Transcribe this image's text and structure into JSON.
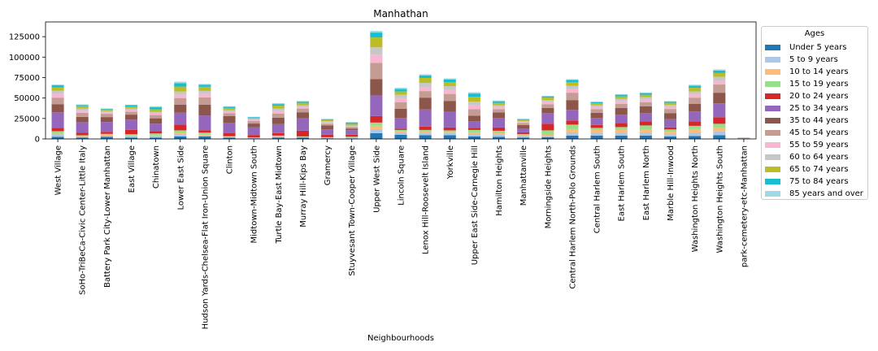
{
  "chart_data": {
    "type": "bar",
    "stacked": true,
    "title": "Manhathan",
    "xlabel": "Neighbourhoods",
    "ylabel": "",
    "ylim": [
      0,
      143000
    ],
    "yticks": [
      0,
      25000,
      50000,
      75000,
      100000,
      125000
    ],
    "ytick_labels": [
      "0",
      "25000",
      "50000",
      "75000",
      "100000",
      "125000"
    ],
    "grid": false,
    "legend": {
      "title": "Ages",
      "placement": "outside-right"
    },
    "categories": [
      "West Village",
      "SoHo-TriBeCa-Civic Center-Little Italy",
      "Battery Park City-Lower Manhattan",
      "East Village",
      "Chinatown",
      "Lower East Side",
      "Hudson Yards-Chelsea-Flat Iron-Union Square",
      "Clinton",
      "Midtown-Midtown South",
      "Turtle Bay-East Midtown",
      "Murray Hill-Kips Bay",
      "Gramercy",
      "Stuyvesant Town-Cooper Village",
      "Upper West Side",
      "Lincoln Square",
      "Lenox Hill-Roosevelt Island",
      "Yorkville",
      "Upper East Side-Carnegie Hill",
      "Hamilton Heights",
      "Manhattanville",
      "Morningside Heights",
      "Central Harlem North-Polo Grounds",
      "Central Harlem South",
      "East Harlem South",
      "East Harlem North",
      "Marble Hill-Inwood",
      "Washington Heights North",
      "Washington Heights South",
      "park-cemetery-etc-Manhattan"
    ],
    "series": [
      {
        "name": "Under 5 years",
        "color": "#1f77b4",
        "values": [
          2500,
          1500,
          2500,
          1500,
          1500,
          3000,
          3000,
          1500,
          700,
          1800,
          1800,
          800,
          500,
          7000,
          5000,
          4500,
          4500,
          3000,
          2500,
          1500,
          2000,
          4000,
          4000,
          4000,
          4000,
          3000,
          3500,
          4500,
          100
        ]
      },
      {
        "name": "5 to 9 years",
        "color": "#aec7e8",
        "values": [
          2500,
          1000,
          1500,
          1500,
          1500,
          2500,
          1200,
          800,
          400,
          800,
          500,
          500,
          500,
          5000,
          3000,
          3000,
          2500,
          3000,
          2500,
          1500,
          1500,
          4000,
          3500,
          3500,
          4000,
          2800,
          4500,
          4500,
          100
        ]
      },
      {
        "name": "10 to 14 years",
        "color": "#ffbb78",
        "values": [
          1500,
          1000,
          1200,
          1200,
          1200,
          2000,
          1000,
          500,
          300,
          500,
          300,
          400,
          700,
          4000,
          1500,
          1500,
          1500,
          2000,
          2000,
          1500,
          1500,
          4000,
          3500,
          3500,
          3500,
          2800,
          4000,
          4500,
          100
        ]
      },
      {
        "name": "15 to 19 years",
        "color": "#98df8a",
        "values": [
          3000,
          1000,
          1000,
          1500,
          2500,
          3000,
          2500,
          500,
          400,
          1000,
          500,
          400,
          1000,
          4000,
          1500,
          2000,
          2000,
          3000,
          3000,
          1500,
          5500,
          5500,
          2500,
          3500,
          5000,
          3000,
          4000,
          5000,
          200
        ]
      },
      {
        "name": "20 to 24 years",
        "color": "#d62728",
        "values": [
          4000,
          3000,
          2500,
          5500,
          3000,
          7000,
          3000,
          4000,
          3000,
          3000,
          7000,
          3000,
          2500,
          8000,
          1500,
          4000,
          3500,
          2500,
          4000,
          2000,
          8000,
          5000,
          3500,
          5000,
          5000,
          2500,
          5500,
          8000,
          100
        ]
      },
      {
        "name": "25 to 34 years",
        "color": "#9467bd",
        "values": [
          19000,
          13000,
          12000,
          12500,
          9000,
          14500,
          18000,
          12500,
          9500,
          11000,
          15000,
          6500,
          5500,
          25000,
          13000,
          21000,
          19000,
          8000,
          11500,
          4500,
          13000,
          13000,
          8500,
          10000,
          10000,
          10000,
          12000,
          17000,
          300
        ]
      },
      {
        "name": "35 to 44 years",
        "color": "#8c564b",
        "values": [
          10000,
          6500,
          6000,
          6000,
          6500,
          10000,
          13000,
          8000,
          4500,
          8000,
          7500,
          5000,
          2000,
          20000,
          11500,
          14500,
          13500,
          7000,
          7000,
          4500,
          6500,
          12000,
          6500,
          8500,
          8500,
          7500,
          9500,
          13000,
          200
        ]
      },
      {
        "name": "45 to 54 years",
        "color": "#c49c94",
        "values": [
          8000,
          5000,
          4000,
          3500,
          4000,
          8000,
          9000,
          3500,
          3000,
          5000,
          4500,
          2000,
          2000,
          20000,
          8000,
          8000,
          8500,
          8000,
          4000,
          2500,
          4500,
          9000,
          4500,
          5000,
          5000,
          5000,
          7500,
          10000,
          200
        ]
      },
      {
        "name": "55 to 59 years",
        "color": "#f7b6d2",
        "values": [
          4500,
          2500,
          1800,
          2000,
          2000,
          4000,
          4500,
          2000,
          1500,
          3000,
          2000,
          1500,
          800,
          10000,
          5000,
          5000,
          5000,
          4500,
          2500,
          1200,
          2500,
          4500,
          2500,
          3000,
          3000,
          2500,
          4000,
          5000,
          100
        ]
      },
      {
        "name": "60 to 64 years",
        "color": "#c7c7c7",
        "values": [
          4000,
          2500,
          1500,
          2000,
          2000,
          4000,
          3500,
          2000,
          1500,
          3000,
          2000,
          1500,
          1000,
          9000,
          4000,
          5000,
          4500,
          4500,
          2000,
          1200,
          2500,
          4000,
          2000,
          3000,
          3000,
          2500,
          3500,
          4500,
          100
        ]
      },
      {
        "name": "65 to 74 years",
        "color": "#bcbd22",
        "values": [
          4000,
          3000,
          2000,
          2500,
          3000,
          6000,
          5000,
          2500,
          1000,
          3500,
          3000,
          1500,
          2000,
          12000,
          4000,
          6000,
          5000,
          6000,
          3000,
          1500,
          3000,
          4500,
          2500,
          3000,
          3000,
          2500,
          4500,
          4500,
          100
        ]
      },
      {
        "name": "75 to 84 years",
        "color": "#17becf",
        "values": [
          2500,
          1500,
          800,
          1500,
          2500,
          4000,
          2500,
          1500,
          800,
          2000,
          1500,
          1000,
          1500,
          6000,
          3000,
          3000,
          3000,
          4000,
          2000,
          800,
          1500,
          2500,
          1500,
          2000,
          2000,
          1500,
          2500,
          3000,
          100
        ]
      },
      {
        "name": "85 years and over",
        "color": "#9edae5",
        "values": [
          1000,
          700,
          500,
          700,
          1300,
          2000,
          1000,
          700,
          500,
          1200,
          700,
          500,
          700,
          2000,
          1500,
          1500,
          1500,
          1500,
          1000,
          500,
          700,
          1000,
          700,
          800,
          800,
          600,
          1300,
          1500,
          100
        ]
      }
    ]
  }
}
